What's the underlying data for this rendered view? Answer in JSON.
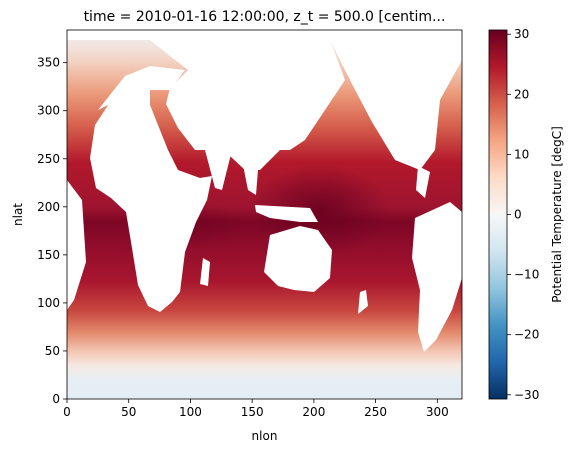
{
  "chart_data": {
    "type": "heatmap",
    "title": "time = 2010-01-16 12:00:00, z_t = 500.0 [centim...",
    "xlabel": "nlon",
    "ylabel": "nlat",
    "xlim": [
      0,
      320
    ],
    "ylim": [
      0,
      384
    ],
    "x_ticks": [
      0,
      50,
      100,
      150,
      200,
      250,
      300
    ],
    "y_ticks": [
      0,
      50,
      100,
      150,
      200,
      250,
      300,
      350
    ],
    "colorbar": {
      "label": "Potential Temperature [degC]",
      "vmin": -30.7,
      "vmax": 30.7,
      "ticks": [
        30,
        20,
        10,
        0,
        -10,
        -20,
        -30
      ],
      "colormap": "RdBu_r",
      "colors": [
        "#053061",
        "#2166ac",
        "#4393c3",
        "#92c5de",
        "#d1e5f0",
        "#f7f7f7",
        "#fddbc7",
        "#f4a582",
        "#d6604d",
        "#b2182b",
        "#67001f"
      ]
    },
    "land_color": "#ffffff",
    "field_description_approx": {
      "tropical_max_degC": 30,
      "midlatitude_degC": 20,
      "polar_min_degC": -2
    }
  }
}
